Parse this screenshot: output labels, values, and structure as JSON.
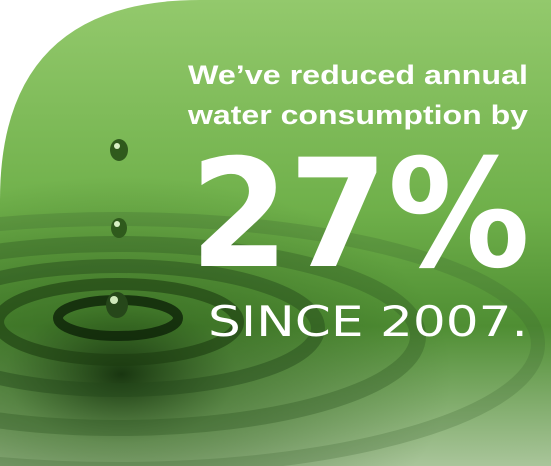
{
  "headline": [
    "We’ve reduced annual",
    "water consumption by"
  ],
  "figure": "27%",
  "since": "SINCE 2007."
}
